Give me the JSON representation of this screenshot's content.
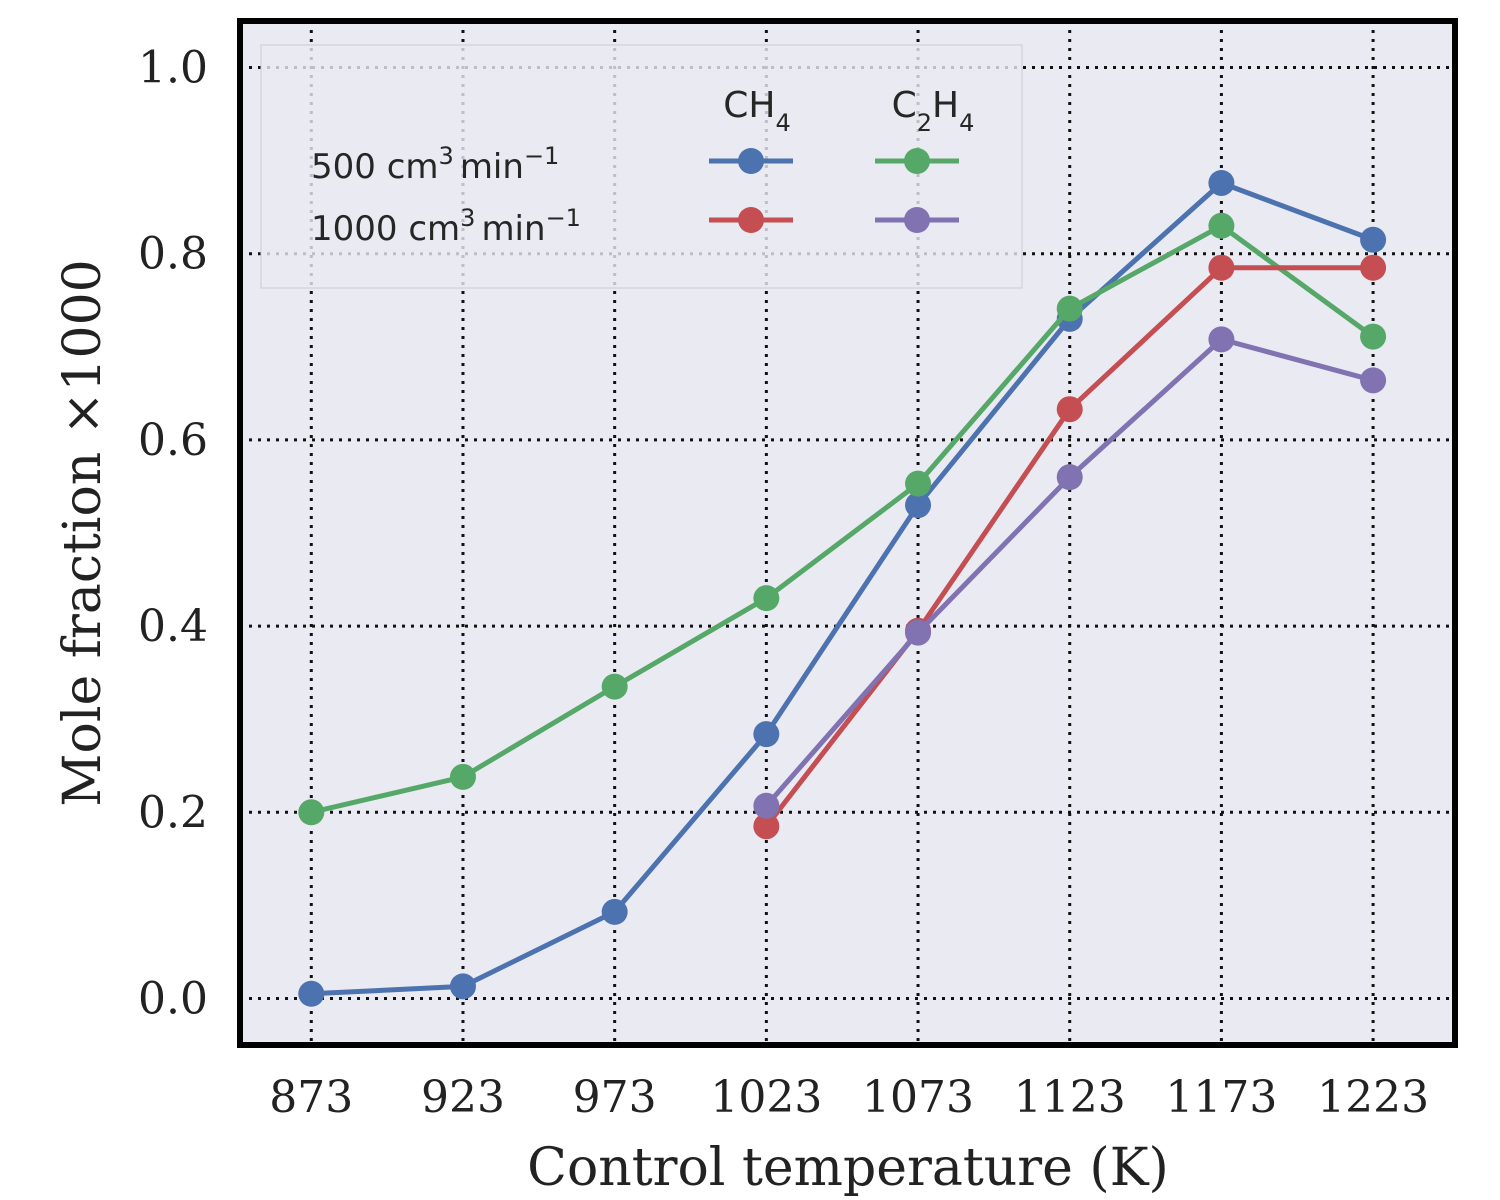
{
  "chart_data": {
    "type": "line",
    "xlabel": "Control temperature (K)",
    "ylabel": "Mole fraction ×1000",
    "categories": [
      "873",
      "923",
      "973",
      "1023",
      "1073",
      "1123",
      "1173",
      "1223"
    ],
    "x": [
      873,
      923,
      973,
      1023,
      1073,
      1123,
      1173,
      1223
    ],
    "xlim": [
      849.5,
      1250
    ],
    "ylim": [
      -0.05,
      1.05
    ],
    "yticks": [
      0.0,
      0.2,
      0.4,
      0.6,
      0.8,
      1.0
    ],
    "ytick_labels": [
      "0.0",
      "0.2",
      "0.4",
      "0.6",
      "0.8",
      "1.0"
    ],
    "grid": true,
    "legend_placement": "top-left",
    "legend": {
      "column_headers": [
        "CH4",
        "C2H4"
      ],
      "row_labels": [
        "500 cm3 min−1",
        "1000 cm3 min−1"
      ]
    },
    "series": [
      {
        "name": "CH4 500 cm3 min−1",
        "color": "#4c72b0",
        "x": [
          873,
          923,
          973,
          1023,
          1073,
          1123,
          1173,
          1223
        ],
        "values": [
          0.005,
          0.013,
          0.093,
          0.284,
          0.53,
          0.73,
          0.876,
          0.815
        ]
      },
      {
        "name": "C2H4 500 cm3 min−1",
        "color": "#55a868",
        "x": [
          873,
          923,
          973,
          1023,
          1073,
          1123,
          1173,
          1223
        ],
        "values": [
          0.2,
          0.238,
          0.335,
          0.43,
          0.553,
          0.741,
          0.83,
          0.711
        ]
      },
      {
        "name": "CH4 1000 cm3 min−1",
        "color": "#c44e52",
        "x": [
          1023,
          1073,
          1123,
          1173,
          1223
        ],
        "values": [
          0.185,
          0.395,
          0.633,
          0.785,
          0.785
        ]
      },
      {
        "name": "C2H4 1000 cm3 min−1",
        "color": "#8172b2",
        "x": [
          1023,
          1073,
          1123,
          1173,
          1223
        ],
        "values": [
          0.207,
          0.393,
          0.56,
          0.708,
          0.664
        ]
      }
    ]
  }
}
